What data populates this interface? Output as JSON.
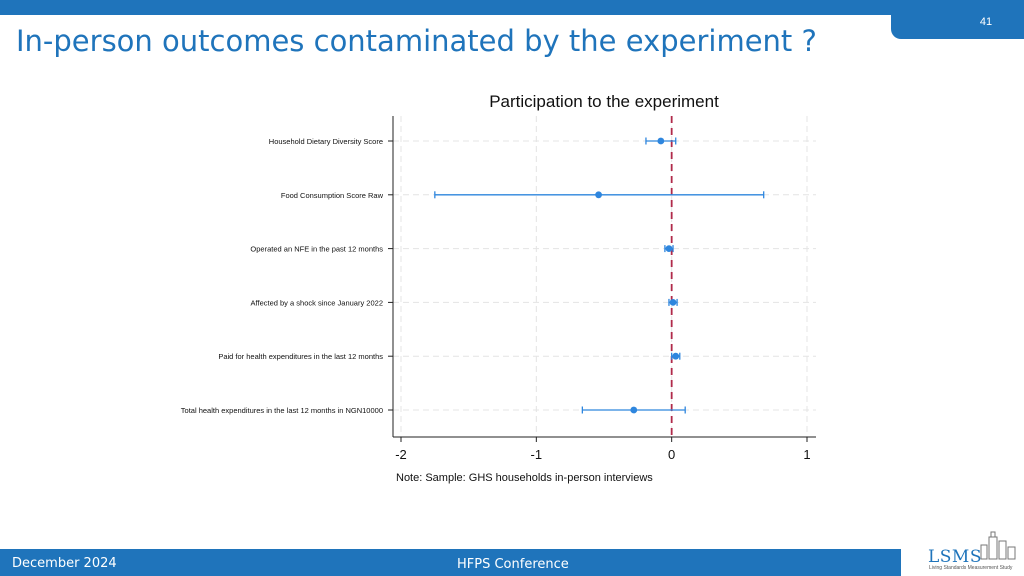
{
  "slide": {
    "page_number": "41",
    "title": "In-person outcomes contaminated by the experiment ?",
    "footer_date": "December 2024",
    "footer_conference": "HFPS Conference",
    "logo_text": "LSMS",
    "logo_tagline": "Living Standards Measurement Study"
  },
  "colors": {
    "accent": "#1f74bb",
    "point": "#2e86de",
    "zero_line": "#b02a4a"
  },
  "chart_data": {
    "type": "scatter",
    "subtype": "coefficient-plot",
    "title": "Participation to the experiment",
    "note": "Note: Sample: GHS households in-person interviews",
    "xlabel": "",
    "ylabel": "",
    "xlim": [
      -2.05,
      1.05
    ],
    "xticks": [
      "-2",
      "-1",
      "0",
      "1"
    ],
    "tick_values": [
      -2,
      -1,
      0,
      1
    ],
    "reference_line_x": 0,
    "grid": true,
    "series": [
      {
        "values": [
          {
            "label": "Household Dietary Diversity Score",
            "estimate": -0.08,
            "ci": [
              -0.19,
              0.03
            ]
          },
          {
            "label": "Food Consumption Score Raw",
            "estimate": -0.54,
            "ci": [
              -1.75,
              0.68
            ]
          },
          {
            "label": "Operated an NFE in the past 12 months",
            "estimate": -0.02,
            "ci": [
              -0.05,
              0.01
            ]
          },
          {
            "label": "Affected by a shock since January 2022",
            "estimate": 0.01,
            "ci": [
              -0.02,
              0.04
            ]
          },
          {
            "label": "Paid for health expenditures in the last 12 months",
            "estimate": 0.03,
            "ci": [
              0.0,
              0.06
            ]
          },
          {
            "label": "Total health expenditures in the last 12 months in NGN10000",
            "estimate": -0.28,
            "ci": [
              -0.66,
              0.1
            ]
          }
        ]
      }
    ]
  }
}
